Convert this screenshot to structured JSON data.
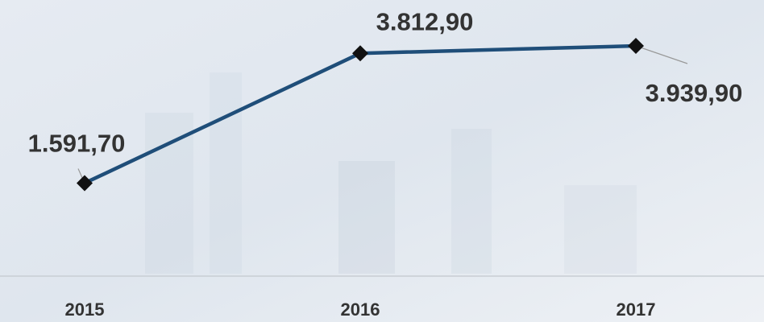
{
  "chart_data": {
    "type": "line",
    "categories": [
      "2015",
      "2016",
      "2017"
    ],
    "values": [
      1591.7,
      3812.9,
      3939.9
    ],
    "value_labels": [
      "1.591,70",
      "3.812,90",
      "3.939,90"
    ],
    "color": "#1f4e79"
  }
}
